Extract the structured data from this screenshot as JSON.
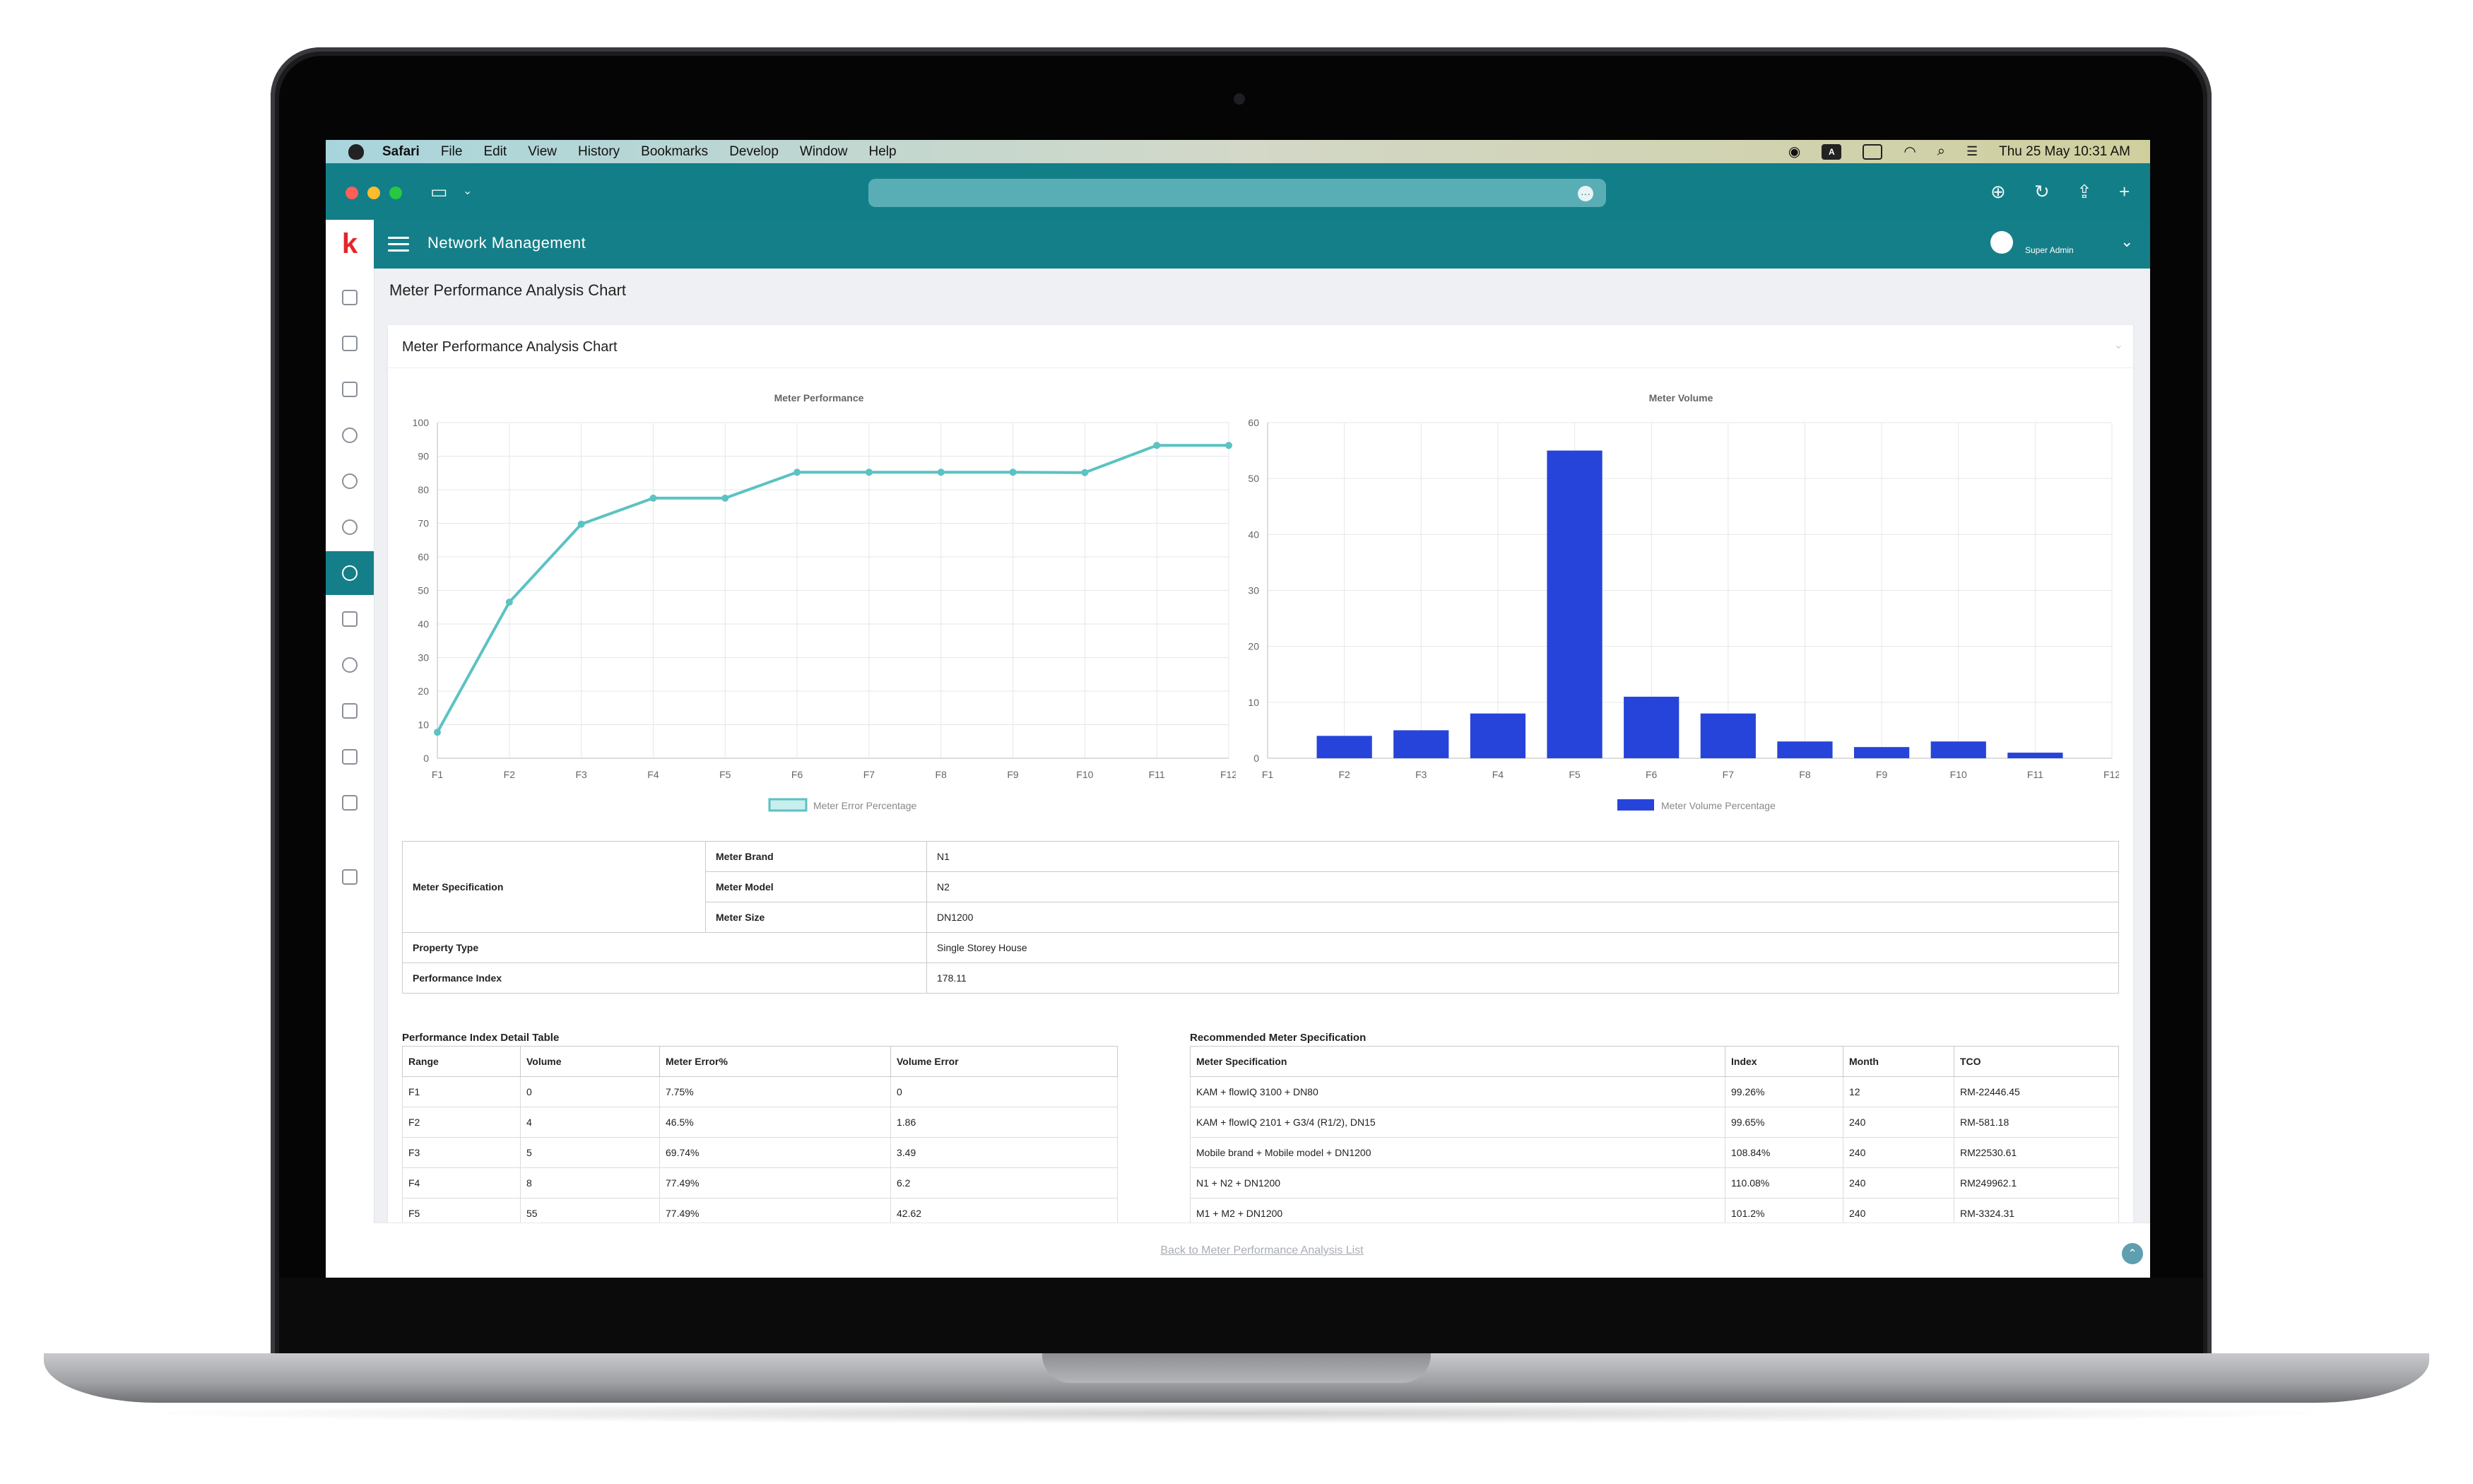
{
  "menubar": {
    "app": "Safari",
    "items": [
      "File",
      "Edit",
      "View",
      "History",
      "Bookmarks",
      "Develop",
      "Window",
      "Help"
    ],
    "keyboard_badge": "A",
    "clock": "Thu 25 May  10:31 AM"
  },
  "browser": {
    "address_more_icon": "ellipsis-icon"
  },
  "app": {
    "logo": "k",
    "title": "Network Management",
    "user": "Super Admin"
  },
  "page": {
    "title": "Meter Performance Analysis Chart",
    "card_title": "Meter Performance Analysis Chart",
    "back_link": "Back to Meter Performance Analysis List"
  },
  "sidebar": {
    "items": [
      "home-icon",
      "device-icon",
      "checklist-icon",
      "user-icon",
      "users-icon",
      "group-icon",
      "network-icon",
      "upload-icon",
      "settings-icon",
      "report-icon",
      "document-icon",
      "camera-settings-icon",
      "logout-icon"
    ],
    "active_index": 6
  },
  "chart_data": [
    {
      "type": "line",
      "title": "Meter Performance",
      "categories": [
        "F1",
        "F2",
        "F3",
        "F4",
        "F5",
        "F6",
        "F7",
        "F8",
        "F9",
        "F10",
        "F11",
        "F12"
      ],
      "series": [
        {
          "name": "Meter Error Percentage",
          "values": [
            7.75,
            46.5,
            69.74,
            77.49,
            77.49,
            85.2,
            85.2,
            85.2,
            85.2,
            85.1,
            93.2,
            93.2
          ],
          "color": "#5cc2c3"
        }
      ],
      "ylim": [
        0,
        100
      ],
      "yticks": [
        0,
        10,
        20,
        30,
        40,
        50,
        60,
        70,
        80,
        90,
        100
      ],
      "grid": true,
      "legend": "bottom"
    },
    {
      "type": "bar",
      "title": "Meter Volume",
      "categories": [
        "F1",
        "F2",
        "F3",
        "F4",
        "F5",
        "F6",
        "F7",
        "F8",
        "F9",
        "F10",
        "F11",
        "F12"
      ],
      "series": [
        {
          "name": "Meter Volume Percentage",
          "values": [
            0,
            4,
            5,
            8,
            55,
            11,
            8,
            3,
            2,
            3,
            1,
            0
          ],
          "color": "#2644d9"
        }
      ],
      "ylim": [
        0,
        60
      ],
      "yticks": [
        0,
        10,
        20,
        30,
        40,
        50,
        60
      ],
      "grid": true,
      "legend": "bottom"
    }
  ],
  "spec": {
    "meter_spec_label": "Meter Specification",
    "brand_label": "Meter Brand",
    "brand": "N1",
    "model_label": "Meter Model",
    "model": "N2",
    "size_label": "Meter Size",
    "size": "DN1200",
    "property_label": "Property Type",
    "property": "Single Storey House",
    "pi_label": "Performance Index",
    "pi": "178.11"
  },
  "pi_table": {
    "title": "Performance Index Detail Table",
    "headers": [
      "Range",
      "Volume",
      "Meter Error%",
      "Volume Error"
    ],
    "rows": [
      [
        "F1",
        "0",
        "7.75%",
        "0"
      ],
      [
        "F2",
        "4",
        "46.5%",
        "1.86"
      ],
      [
        "F3",
        "5",
        "69.74%",
        "3.49"
      ],
      [
        "F4",
        "8",
        "77.49%",
        "6.2"
      ],
      [
        "F5",
        "55",
        "77.49%",
        "42.62"
      ]
    ]
  },
  "rec_table": {
    "title": "Recommended Meter Specification",
    "headers": [
      "Meter Specification",
      "Index",
      "Month",
      "TCO"
    ],
    "rows": [
      [
        "KAM + flowIQ 3100 + DN80",
        "99.26%",
        "12",
        "RM-22446.45"
      ],
      [
        "KAM + flowIQ 2101 + G3/4 (R1/2), DN15",
        "99.65%",
        "240",
        "RM-581.18"
      ],
      [
        "Mobile brand + Mobile model + DN1200",
        "108.84%",
        "240",
        "RM22530.61"
      ],
      [
        "N1 + N2 + DN1200",
        "110.08%",
        "240",
        "RM249962.1"
      ],
      [
        "M1 + M2 + DN1200",
        "101.2%",
        "240",
        "RM-3324.31"
      ]
    ]
  }
}
